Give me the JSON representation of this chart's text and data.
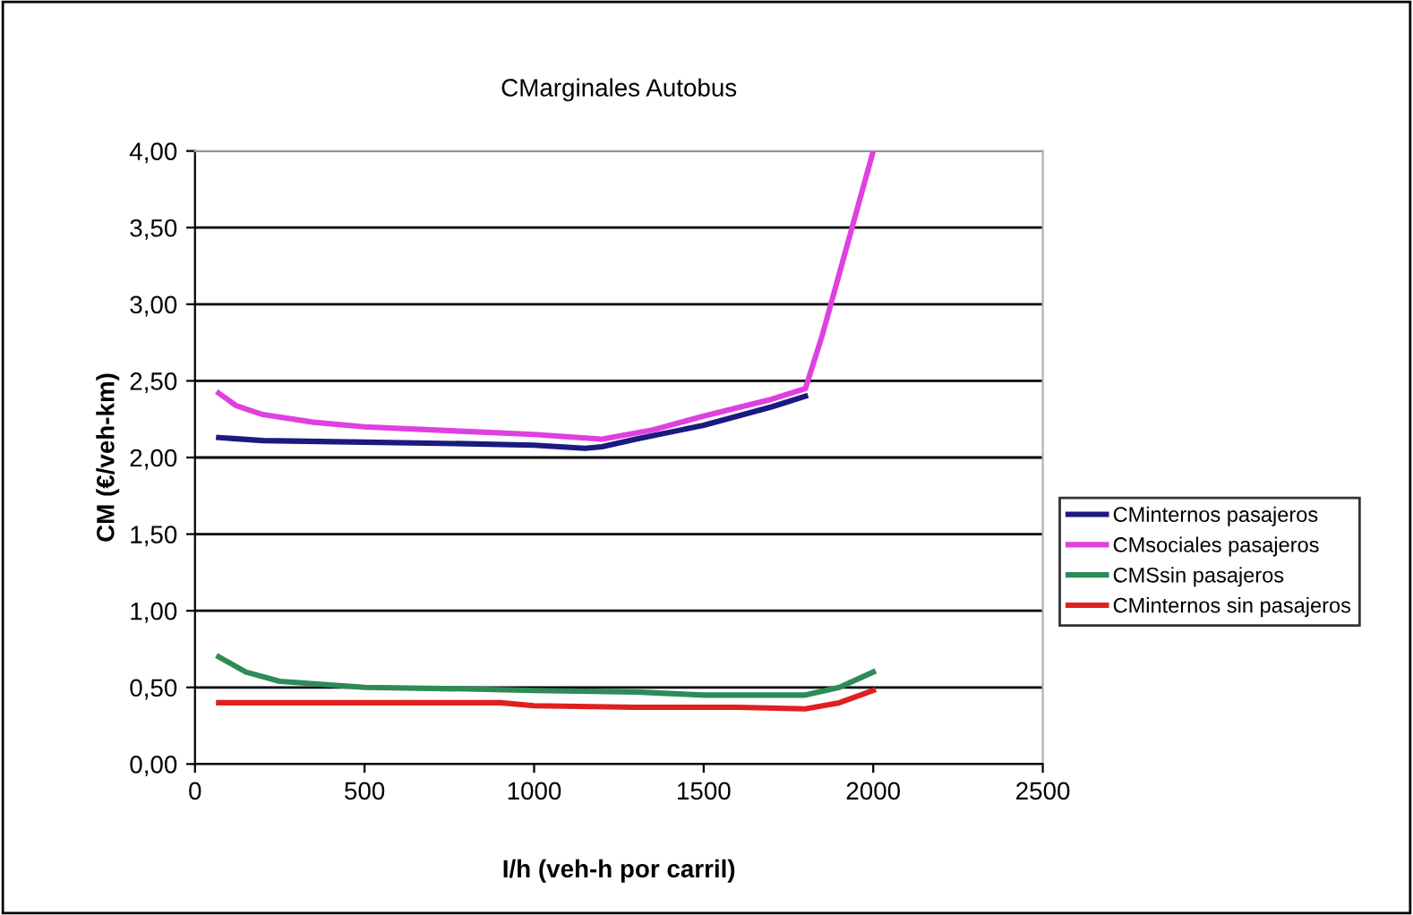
{
  "chart_data": {
    "type": "line",
    "title": "CMarginales Autobus",
    "xlabel": "I/h (veh-h por carril)",
    "ylabel": "CM (€/veh-km)",
    "xlim": [
      0,
      2500
    ],
    "xticks": [
      0,
      500,
      1000,
      1500,
      2000,
      2500
    ],
    "ylim": [
      0,
      4
    ],
    "yticks": [
      {
        "value": 0,
        "label": "0,00"
      },
      {
        "value": 0.5,
        "label": "0,50"
      },
      {
        "value": 1,
        "label": "1,00"
      },
      {
        "value": 1.5,
        "label": "1,50"
      },
      {
        "value": 2,
        "label": "2,00"
      },
      {
        "value": 2.5,
        "label": "2,50"
      },
      {
        "value": 3,
        "label": "3,00"
      },
      {
        "value": 3.5,
        "label": "3,50"
      },
      {
        "value": 4,
        "label": "4,00"
      }
    ],
    "grid": "y",
    "legend": "right",
    "marker": "none",
    "line_style": "solid",
    "series": [
      {
        "name": "CMinternos pasajeros",
        "color": "#1a1a80",
        "x": [
          70,
          200,
          500,
          800,
          1000,
          1150,
          1200,
          1300,
          1500,
          1700,
          1800
        ],
        "values": [
          2.13,
          2.11,
          2.1,
          2.09,
          2.08,
          2.06,
          2.07,
          2.12,
          2.21,
          2.33,
          2.4
        ]
      },
      {
        "name": "CMsociales pasajeros",
        "color": "#e040e0",
        "x": [
          70,
          120,
          200,
          350,
          500,
          800,
          1000,
          1200,
          1350,
          1500,
          1700,
          1800,
          1850,
          1900,
          1950,
          2000
        ],
        "values": [
          2.42,
          2.34,
          2.28,
          2.23,
          2.2,
          2.17,
          2.15,
          2.12,
          2.18,
          2.27,
          2.38,
          2.45,
          2.8,
          3.2,
          3.6,
          4.0
        ]
      },
      {
        "name": "CMSsin pasajeros",
        "color": "#2e8b57",
        "x": [
          70,
          150,
          250,
          500,
          800,
          1000,
          1300,
          1500,
          1800,
          1900,
          2000
        ],
        "values": [
          0.7,
          0.6,
          0.54,
          0.5,
          0.49,
          0.48,
          0.47,
          0.45,
          0.45,
          0.5,
          0.6
        ]
      },
      {
        "name": "CMinternos sin pasajeros",
        "color": "#e02020",
        "x": [
          70,
          500,
          900,
          1000,
          1300,
          1600,
          1800,
          1900,
          2000
        ],
        "values": [
          0.4,
          0.4,
          0.4,
          0.38,
          0.37,
          0.37,
          0.36,
          0.4,
          0.48
        ]
      }
    ]
  }
}
